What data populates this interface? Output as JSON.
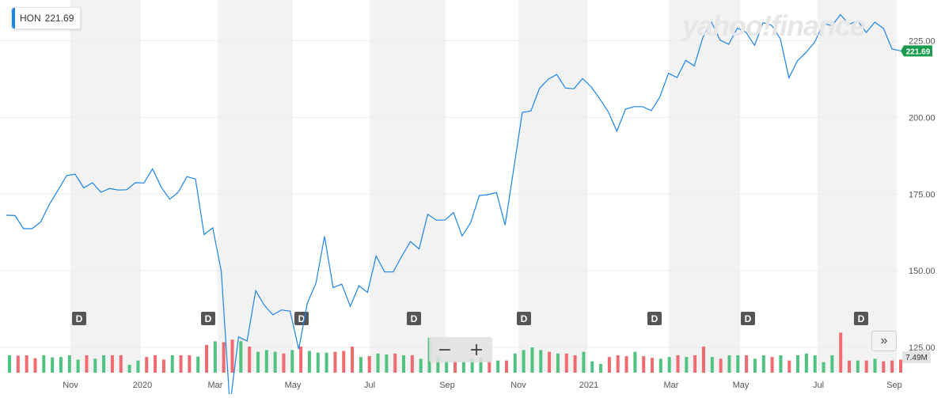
{
  "legend": {
    "symbol": "HON",
    "price": "221.69"
  },
  "watermark": "yahoo!finance",
  "price_tag": "221.69",
  "volume_tag": "7.49M",
  "controls": {
    "zoom_out": "−",
    "zoom_in": "+",
    "next": "»"
  },
  "colors": {
    "line": "#1a84e8",
    "up": "#52c281",
    "down": "#ef6b70",
    "tag": "#1a9c4e",
    "band": "#f2f2f2",
    "marker": "#555555"
  },
  "chart_data": {
    "type": "line",
    "series": [
      {
        "name": "HON",
        "values": [
          168.1,
          168.0,
          163.7,
          163.7,
          165.9,
          171.6,
          176.2,
          181.0,
          181.5,
          177.0,
          178.7,
          175.6,
          176.8,
          176.3,
          176.4,
          178.7,
          178.6,
          183.2,
          177.3,
          173.3,
          175.6,
          180.7,
          179.9,
          161.8,
          164.0,
          149.8,
          106.0,
          128.4,
          127.1,
          143.5,
          138.7,
          135.6,
          137.2,
          136.8,
          124.4,
          139.4,
          145.9,
          161.2,
          144.5,
          145.6,
          138.4,
          145.1,
          142.9,
          154.8,
          149.6,
          149.6,
          154.8,
          159.5,
          157.1,
          168.4,
          166.5,
          166.5,
          169.0,
          161.3,
          165.7,
          174.5,
          174.8,
          175.5,
          164.9,
          183.2,
          201.6,
          202.1,
          209.5,
          212.4,
          214.0,
          209.6,
          209.3,
          212.7,
          210.0,
          206.1,
          201.8,
          195.5,
          202.7,
          203.5,
          203.5,
          202.2,
          206.7,
          214.4,
          213.0,
          218.6,
          216.8,
          226.1,
          231.1,
          225.2,
          223.8,
          229.1,
          227.8,
          223.5,
          230.9,
          230.0,
          225.7,
          212.9,
          218.5,
          221.2,
          224.5,
          230.6,
          229.9,
          233.5,
          230.4,
          231.5,
          227.7,
          231.1,
          229.0,
          222.3,
          221.69
        ]
      }
    ],
    "volume": {
      "values": [
        1.0,
        0.98,
        1.0,
        0.83,
        1.0,
        0.88,
        0.9,
        1.0,
        0.75,
        1.0,
        0.8,
        1.0,
        1.0,
        1.0,
        0.45,
        0.7,
        0.9,
        1.0,
        0.75,
        1.0,
        1.0,
        1.0,
        0.92,
        1.6,
        1.8,
        1.75,
        1.9,
        1.8,
        1.5,
        1.2,
        1.3,
        1.2,
        1.1,
        1.3,
        1.5,
        1.25,
        1.15,
        1.15,
        1.2,
        1.25,
        1.5,
        0.9,
        0.95,
        1.1,
        1.05,
        1.1,
        1.0,
        1.0,
        0.8,
        2.0,
        0.9,
        0.7,
        0.7,
        0.7,
        0.8,
        0.85,
        0.7,
        0.7,
        0.7,
        1.1,
        1.3,
        1.45,
        1.3,
        1.2,
        1.1,
        1.1,
        1.0,
        1.2,
        0.65,
        0.5,
        0.9,
        1.0,
        0.95,
        1.2,
        0.95,
        0.85,
        0.8,
        0.9,
        1.0,
        0.9,
        1.0,
        1.5,
        0.9,
        0.8,
        1.0,
        1.0,
        1.0,
        0.8,
        1.0,
        0.9,
        1.0,
        0.7,
        1.0,
        1.1,
        1.0,
        0.6,
        1.0,
        2.3,
        0.7,
        0.7,
        0.7,
        0.8,
        0.65,
        0.7,
        0.75
      ],
      "up": [
        1,
        0,
        0,
        0,
        1,
        1,
        1,
        1,
        1,
        0,
        1,
        1,
        0,
        0,
        1,
        1,
        0,
        0,
        0,
        1,
        0,
        0,
        1,
        0,
        1,
        0,
        0,
        1,
        0,
        1,
        1,
        1,
        0,
        1,
        0,
        1,
        1,
        1,
        0,
        0,
        0,
        1,
        0,
        1,
        1,
        0,
        1,
        0,
        1,
        1,
        1,
        1,
        0,
        1,
        1,
        1,
        0,
        1,
        0,
        1,
        1,
        1,
        1,
        0,
        1,
        0,
        0,
        1,
        1,
        1,
        0,
        0,
        0,
        1,
        0,
        0,
        1,
        1,
        0,
        1,
        0,
        0,
        1,
        0,
        1,
        1,
        0,
        1,
        1,
        0,
        1,
        0,
        1,
        1,
        1,
        1,
        1,
        0,
        0,
        1,
        0,
        1,
        0,
        0,
        0
      ]
    },
    "x_tick_labels": [
      "Nov",
      "2020",
      "Mar",
      "May",
      "Jul",
      "Sep",
      "Nov",
      "2021",
      "Mar",
      "May",
      "Jul",
      "Sep"
    ],
    "y_tick_labels": [
      "225.00",
      "200.00",
      "175.00",
      "150.00",
      "125.00"
    ],
    "ylim": [
      117,
      237
    ],
    "dividend_markers": [
      "D",
      "D",
      "D",
      "D",
      "D",
      "D",
      "D",
      "D"
    ],
    "grid": true
  }
}
